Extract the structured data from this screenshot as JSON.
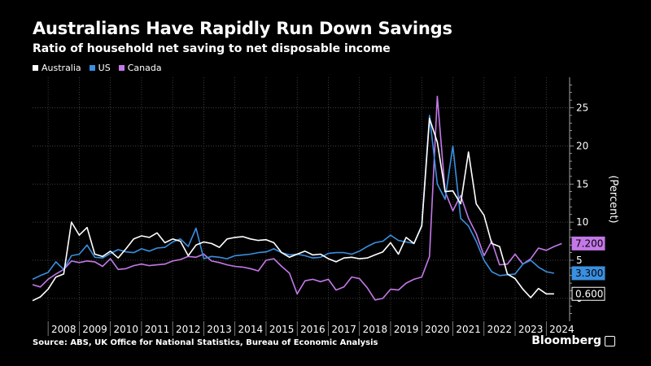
{
  "chart_data": {
    "type": "line",
    "title": "Australians Have Rapidly Run Down Savings",
    "subtitle": "Ratio of household net saving to net disposable income",
    "ylabel": "(Percent)",
    "xlabel": "",
    "ylim": [
      -3,
      29
    ],
    "xlim": [
      2007.5,
      2024.75
    ],
    "yticks": [
      0,
      5,
      10,
      15,
      20,
      25
    ],
    "ytick_labels": [
      "0",
      "5",
      "10",
      "15",
      "20",
      "25"
    ],
    "xticks": [
      2008,
      2009,
      2010,
      2011,
      2012,
      2013,
      2014,
      2015,
      2016,
      2017,
      2018,
      2019,
      2020,
      2021,
      2022,
      2023,
      2024
    ],
    "xtick_labels": [
      "2008",
      "2009",
      "2010",
      "2011",
      "2012",
      "2013",
      "2014",
      "2015",
      "2016",
      "2017",
      "2018",
      "2019",
      "2020",
      "2021",
      "2022",
      "2023",
      "2024"
    ],
    "grid": true,
    "legend_position": "top-left",
    "series": [
      {
        "name": "Australia",
        "color": "#ffffff",
        "end_label": "0.600",
        "values": [
          [
            2007.5,
            -0.3
          ],
          [
            2007.75,
            0.2
          ],
          [
            2008.0,
            1.2
          ],
          [
            2008.25,
            2.8
          ],
          [
            2008.5,
            3.2
          ],
          [
            2008.75,
            10.0
          ],
          [
            2009.0,
            8.3
          ],
          [
            2009.25,
            9.3
          ],
          [
            2009.5,
            5.8
          ],
          [
            2009.75,
            5.5
          ],
          [
            2010.0,
            6.2
          ],
          [
            2010.25,
            5.3
          ],
          [
            2010.5,
            6.5
          ],
          [
            2010.75,
            7.8
          ],
          [
            2011.0,
            8.2
          ],
          [
            2011.25,
            8.0
          ],
          [
            2011.5,
            8.6
          ],
          [
            2011.75,
            7.3
          ],
          [
            2012.0,
            7.8
          ],
          [
            2012.25,
            7.5
          ],
          [
            2012.5,
            5.6
          ],
          [
            2012.75,
            7.0
          ],
          [
            2013.0,
            7.4
          ],
          [
            2013.25,
            7.2
          ],
          [
            2013.5,
            6.7
          ],
          [
            2013.75,
            7.8
          ],
          [
            2014.0,
            8.0
          ],
          [
            2014.25,
            8.1
          ],
          [
            2014.5,
            7.8
          ],
          [
            2014.75,
            7.6
          ],
          [
            2015.0,
            7.7
          ],
          [
            2015.25,
            7.3
          ],
          [
            2015.5,
            6.0
          ],
          [
            2015.75,
            5.4
          ],
          [
            2016.0,
            5.8
          ],
          [
            2016.25,
            6.2
          ],
          [
            2016.5,
            5.7
          ],
          [
            2016.75,
            5.8
          ],
          [
            2017.0,
            5.2
          ],
          [
            2017.25,
            4.8
          ],
          [
            2017.5,
            5.3
          ],
          [
            2017.75,
            5.4
          ],
          [
            2018.0,
            5.2
          ],
          [
            2018.25,
            5.3
          ],
          [
            2018.5,
            5.7
          ],
          [
            2018.75,
            6.1
          ],
          [
            2019.0,
            7.3
          ],
          [
            2019.25,
            5.8
          ],
          [
            2019.5,
            8.0
          ],
          [
            2019.75,
            7.2
          ],
          [
            2020.0,
            9.5
          ],
          [
            2020.25,
            23.6
          ],
          [
            2020.5,
            20.5
          ],
          [
            2020.75,
            14.0
          ],
          [
            2021.0,
            14.1
          ],
          [
            2021.25,
            12.4
          ],
          [
            2021.5,
            19.2
          ],
          [
            2021.75,
            12.4
          ],
          [
            2022.0,
            10.9
          ],
          [
            2022.25,
            7.2
          ],
          [
            2022.5,
            6.8
          ],
          [
            2022.75,
            3.2
          ],
          [
            2023.0,
            2.6
          ],
          [
            2023.25,
            1.2
          ],
          [
            2023.5,
            0.1
          ],
          [
            2023.75,
            1.3
          ],
          [
            2024.0,
            0.6
          ],
          [
            2024.25,
            0.6
          ]
        ]
      },
      {
        "name": "US",
        "color": "#3a8fe0",
        "end_label": "3.300",
        "values": [
          [
            2007.5,
            2.5
          ],
          [
            2007.75,
            3.0
          ],
          [
            2008.0,
            3.4
          ],
          [
            2008.25,
            4.8
          ],
          [
            2008.5,
            3.8
          ],
          [
            2008.75,
            5.6
          ],
          [
            2009.0,
            5.8
          ],
          [
            2009.25,
            7.0
          ],
          [
            2009.5,
            5.4
          ],
          [
            2009.75,
            5.3
          ],
          [
            2010.0,
            5.9
          ],
          [
            2010.25,
            6.4
          ],
          [
            2010.5,
            6.1
          ],
          [
            2010.75,
            6.0
          ],
          [
            2011.0,
            6.5
          ],
          [
            2011.25,
            6.2
          ],
          [
            2011.5,
            6.6
          ],
          [
            2011.75,
            6.7
          ],
          [
            2012.0,
            7.4
          ],
          [
            2012.25,
            7.8
          ],
          [
            2012.5,
            6.8
          ],
          [
            2012.75,
            9.2
          ],
          [
            2013.0,
            5.2
          ],
          [
            2013.25,
            5.5
          ],
          [
            2013.5,
            5.4
          ],
          [
            2013.75,
            5.2
          ],
          [
            2014.0,
            5.6
          ],
          [
            2014.25,
            5.7
          ],
          [
            2014.5,
            5.8
          ],
          [
            2014.75,
            6.0
          ],
          [
            2015.0,
            6.1
          ],
          [
            2015.25,
            6.5
          ],
          [
            2015.5,
            6.0
          ],
          [
            2015.75,
            5.7
          ],
          [
            2016.0,
            5.8
          ],
          [
            2016.25,
            5.6
          ],
          [
            2016.5,
            5.3
          ],
          [
            2016.75,
            5.4
          ],
          [
            2017.0,
            5.9
          ],
          [
            2017.25,
            6.0
          ],
          [
            2017.5,
            6.0
          ],
          [
            2017.75,
            5.8
          ],
          [
            2018.0,
            6.2
          ],
          [
            2018.25,
            6.8
          ],
          [
            2018.5,
            7.3
          ],
          [
            2018.75,
            7.5
          ],
          [
            2019.0,
            8.3
          ],
          [
            2019.25,
            7.6
          ],
          [
            2019.5,
            7.4
          ],
          [
            2019.75,
            7.2
          ],
          [
            2020.0,
            9.6
          ],
          [
            2020.25,
            24.0
          ],
          [
            2020.5,
            15.0
          ],
          [
            2020.75,
            13.0
          ],
          [
            2021.0,
            20.0
          ],
          [
            2021.25,
            10.5
          ],
          [
            2021.5,
            9.5
          ],
          [
            2021.75,
            7.5
          ],
          [
            2022.0,
            5.0
          ],
          [
            2022.25,
            3.5
          ],
          [
            2022.5,
            3.0
          ],
          [
            2022.75,
            3.1
          ],
          [
            2023.0,
            3.2
          ],
          [
            2023.25,
            4.5
          ],
          [
            2023.5,
            5.0
          ],
          [
            2023.75,
            4.1
          ],
          [
            2024.0,
            3.5
          ],
          [
            2024.25,
            3.3
          ]
        ]
      },
      {
        "name": "Canada",
        "color": "#c478e8",
        "end_label": "7.200",
        "values": [
          [
            2007.5,
            1.8
          ],
          [
            2007.75,
            1.5
          ],
          [
            2008.0,
            2.5
          ],
          [
            2008.25,
            3.2
          ],
          [
            2008.5,
            3.8
          ],
          [
            2008.75,
            4.9
          ],
          [
            2009.0,
            4.7
          ],
          [
            2009.25,
            4.9
          ],
          [
            2009.5,
            4.8
          ],
          [
            2009.75,
            4.2
          ],
          [
            2010.0,
            5.2
          ],
          [
            2010.25,
            3.8
          ],
          [
            2010.5,
            3.9
          ],
          [
            2010.75,
            4.3
          ],
          [
            2011.0,
            4.5
          ],
          [
            2011.25,
            4.3
          ],
          [
            2011.5,
            4.4
          ],
          [
            2011.75,
            4.5
          ],
          [
            2012.0,
            4.9
          ],
          [
            2012.25,
            5.1
          ],
          [
            2012.5,
            5.5
          ],
          [
            2012.75,
            5.4
          ],
          [
            2013.0,
            5.8
          ],
          [
            2013.25,
            4.9
          ],
          [
            2013.5,
            4.7
          ],
          [
            2013.75,
            4.4
          ],
          [
            2014.0,
            4.2
          ],
          [
            2014.25,
            4.1
          ],
          [
            2014.5,
            3.9
          ],
          [
            2014.75,
            3.6
          ],
          [
            2015.0,
            5.0
          ],
          [
            2015.25,
            5.2
          ],
          [
            2015.5,
            4.2
          ],
          [
            2015.75,
            3.3
          ],
          [
            2016.0,
            0.6
          ],
          [
            2016.25,
            2.3
          ],
          [
            2016.5,
            2.5
          ],
          [
            2016.75,
            2.2
          ],
          [
            2017.0,
            2.5
          ],
          [
            2017.25,
            1.1
          ],
          [
            2017.5,
            1.5
          ],
          [
            2017.75,
            2.8
          ],
          [
            2018.0,
            2.6
          ],
          [
            2018.25,
            1.4
          ],
          [
            2018.5,
            -0.2
          ],
          [
            2018.75,
            0.0
          ],
          [
            2019.0,
            1.2
          ],
          [
            2019.25,
            1.1
          ],
          [
            2019.5,
            2.0
          ],
          [
            2019.75,
            2.5
          ],
          [
            2020.0,
            2.8
          ],
          [
            2020.25,
            5.5
          ],
          [
            2020.5,
            26.5
          ],
          [
            2020.75,
            14.0
          ],
          [
            2021.0,
            11.5
          ],
          [
            2021.25,
            13.5
          ],
          [
            2021.5,
            10.5
          ],
          [
            2021.75,
            8.5
          ],
          [
            2022.0,
            5.6
          ],
          [
            2022.25,
            7.5
          ],
          [
            2022.5,
            4.4
          ],
          [
            2022.75,
            4.5
          ],
          [
            2023.0,
            5.8
          ],
          [
            2023.25,
            4.5
          ],
          [
            2023.5,
            5.2
          ],
          [
            2023.75,
            6.6
          ],
          [
            2024.0,
            6.3
          ],
          [
            2024.25,
            6.8
          ],
          [
            2024.5,
            7.2
          ]
        ]
      }
    ]
  },
  "source_text": "Source: ABS, UK Office for National Statistics, Bureau of Economic Analysis",
  "brand": {
    "name": "Bloomberg",
    "icon": "bloomberg-terminal-icon"
  }
}
